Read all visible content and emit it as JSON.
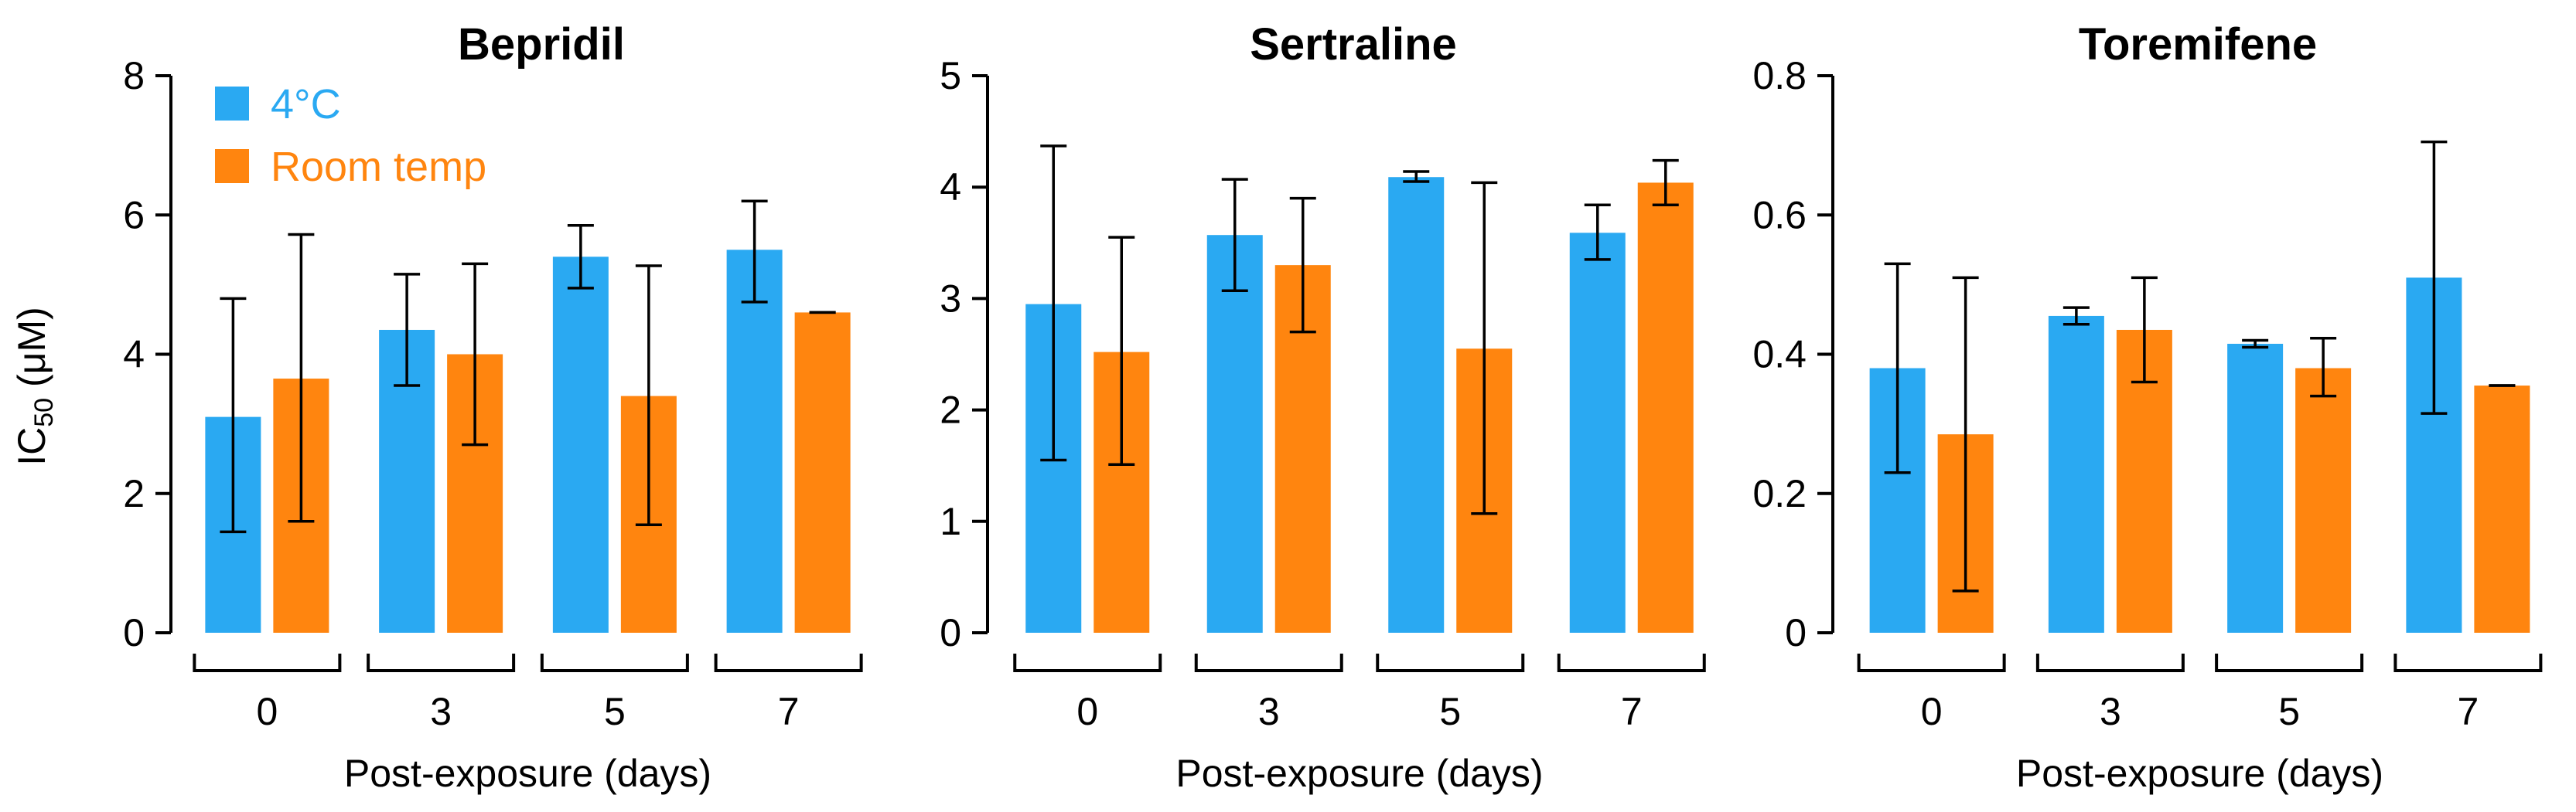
{
  "colors": {
    "cold": "#2aa9f2",
    "room": "#ff850f"
  },
  "legend": {
    "cold_label": "4°C",
    "room_label": "Room temp"
  },
  "ylabel": {
    "main": "IC",
    "sub": "50",
    "unit": " (μM)"
  },
  "chart_data": [
    {
      "type": "bar",
      "title": "Bepridil",
      "xlabel": "Post-exposure (days)",
      "ylabel": "IC50 (μM)",
      "categories": [
        "0",
        "3",
        "5",
        "7"
      ],
      "ylim": [
        0,
        8
      ],
      "yticks": [
        0,
        2,
        4,
        6,
        8
      ],
      "ytick_labels": [
        "0",
        "2",
        "4",
        "6",
        "8"
      ],
      "legend": true,
      "series": [
        {
          "name": "4°C",
          "values": [
            3.1,
            4.35,
            5.4,
            5.5
          ],
          "err_low": [
            1.45,
            3.55,
            4.95,
            4.75
          ],
          "err_high": [
            4.8,
            5.15,
            5.85,
            6.2
          ]
        },
        {
          "name": "Room temp",
          "values": [
            3.65,
            4.0,
            3.4,
            4.6
          ],
          "err_low": [
            1.6,
            2.7,
            1.55,
            4.6
          ],
          "err_high": [
            5.72,
            5.3,
            5.27,
            4.6
          ]
        }
      ]
    },
    {
      "type": "bar",
      "title": "Sertraline",
      "xlabel": "Post-exposure (days)",
      "ylabel": "",
      "categories": [
        "0",
        "3",
        "5",
        "7"
      ],
      "ylim": [
        0,
        5
      ],
      "yticks": [
        0,
        1,
        2,
        3,
        4,
        5
      ],
      "ytick_labels": [
        "0",
        "1",
        "2",
        "3",
        "4",
        "5"
      ],
      "legend": false,
      "series": [
        {
          "name": "4°C",
          "values": [
            2.95,
            3.57,
            4.09,
            3.59
          ],
          "err_low": [
            1.55,
            3.07,
            4.05,
            3.35
          ],
          "err_high": [
            4.37,
            4.07,
            4.14,
            3.84
          ]
        },
        {
          "name": "Room temp",
          "values": [
            2.52,
            3.3,
            2.55,
            4.04
          ],
          "err_low": [
            1.51,
            2.7,
            1.07,
            3.84
          ],
          "err_high": [
            3.55,
            3.9,
            4.04,
            4.24
          ]
        }
      ]
    },
    {
      "type": "bar",
      "title": "Toremifene",
      "xlabel": "Post-exposure (days)",
      "ylabel": "",
      "categories": [
        "0",
        "3",
        "5",
        "7"
      ],
      "ylim": [
        0,
        0.8
      ],
      "yticks": [
        0,
        0.2,
        0.4,
        0.6,
        0.8
      ],
      "ytick_labels": [
        "0",
        "0.2",
        "0.4",
        "0.6",
        "0.8"
      ],
      "legend": false,
      "series": [
        {
          "name": "4°C",
          "values": [
            0.38,
            0.455,
            0.415,
            0.51
          ],
          "err_low": [
            0.23,
            0.443,
            0.41,
            0.315
          ],
          "err_high": [
            0.53,
            0.467,
            0.42,
            0.705
          ]
        },
        {
          "name": "Room temp",
          "values": [
            0.285,
            0.435,
            0.38,
            0.355
          ],
          "err_low": [
            0.06,
            0.36,
            0.34,
            0.355
          ],
          "err_high": [
            0.51,
            0.51,
            0.423,
            0.355
          ]
        }
      ]
    }
  ]
}
